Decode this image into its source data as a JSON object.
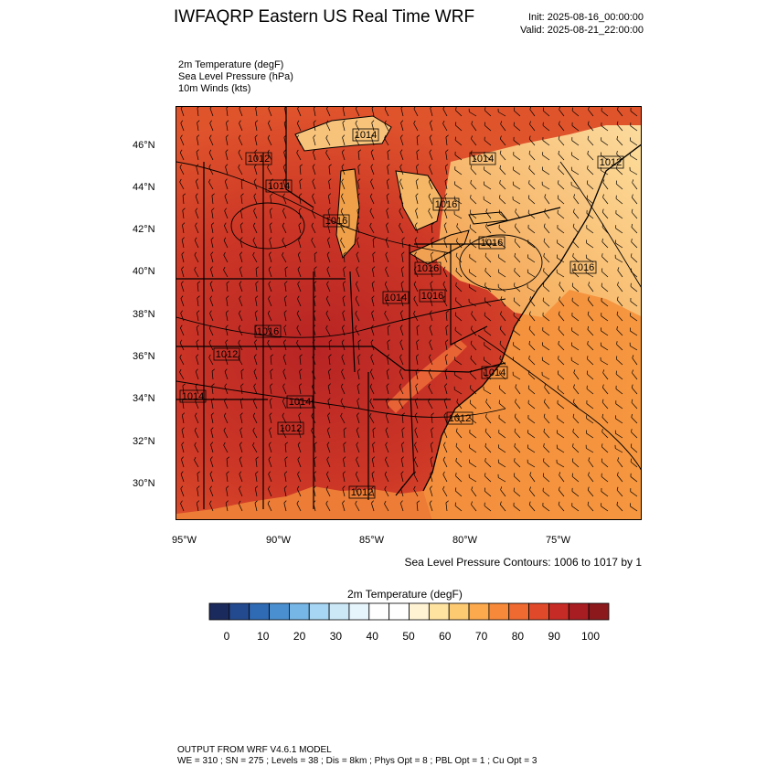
{
  "header": {
    "title": "IWFAQRP Eastern US Real Time WRF",
    "init": "Init: 2025-08-16_00:00:00",
    "valid": "Valid: 2025-08-21_22:00:00"
  },
  "fields": [
    "2m Temperature   (degF)",
    "Sea Level Pressure   (hPa)",
    "10m Winds   (kts)"
  ],
  "map": {
    "lat_labels": [
      "46°N",
      "44°N",
      "42°N",
      "40°N",
      "38°N",
      "36°N",
      "34°N",
      "32°N",
      "30°N"
    ],
    "lon_labels": [
      "95°W",
      "90°W",
      "85°W",
      "80°W",
      "75°W"
    ],
    "pressure_labels": [
      "1014",
      "1012",
      "1014",
      "1014",
      "1016",
      "1016",
      "1016",
      "1016",
      "1016",
      "1014",
      "1012",
      "1016",
      "1014",
      "1012",
      "1014",
      "1012",
      "1014",
      "1016",
      "1012",
      "1012"
    ],
    "contour_info": "Sea Level Pressure Contours: 1006 to 1017 by 1"
  },
  "colorbar": {
    "title": "2m Temperature  (degF)",
    "labels": [
      "0",
      "10",
      "20",
      "30",
      "40",
      "50",
      "60",
      "70",
      "80",
      "90",
      "100"
    ],
    "colors": [
      "#1b2a5c",
      "#234a8f",
      "#2f6bb5",
      "#4a8fcf",
      "#76b6e6",
      "#a6d6f3",
      "#cce8f7",
      "#e6f4fb",
      "#ffffff",
      "#ffffff",
      "#fff3d4",
      "#fee2a0",
      "#fdc971",
      "#fca84c",
      "#f7893a",
      "#ee6a31",
      "#e04a2a",
      "#c72b26",
      "#a81d22",
      "#8c1a1d"
    ]
  },
  "footer": {
    "line1": "OUTPUT FROM WRF V4.6.1 MODEL",
    "line2": "WE = 310 ; SN = 275 ; Levels = 38 ; Dis = 8km ; Phys Opt = 8 ; PBL Opt = 1 ; Cu Opt = 3"
  }
}
